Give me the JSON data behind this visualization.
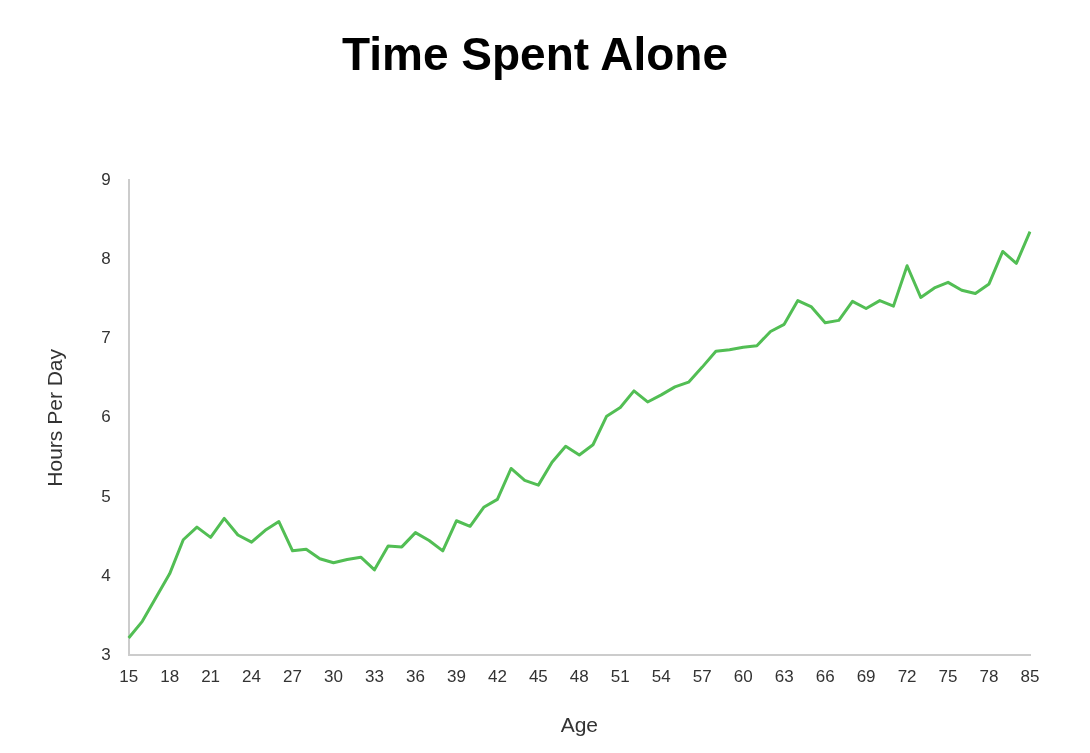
{
  "chart_data": {
    "type": "line",
    "title": "Time Spent Alone",
    "xlabel": "Age",
    "ylabel": "Hours Per Day",
    "categories": [
      "15",
      null,
      null,
      "18",
      null,
      null,
      "21",
      null,
      null,
      "24",
      null,
      null,
      "27",
      null,
      null,
      "30",
      null,
      null,
      "33",
      null,
      null,
      "36",
      null,
      null,
      "39",
      null,
      null,
      "42",
      null,
      null,
      "45",
      null,
      null,
      "48",
      null,
      null,
      "51",
      null,
      null,
      "54",
      null,
      null,
      "57",
      null,
      null,
      "60",
      null,
      null,
      "63",
      null,
      null,
      "66",
      null,
      null,
      "69",
      null,
      null,
      "72",
      null,
      null,
      "75",
      null,
      null,
      "78",
      null,
      null,
      "85"
    ],
    "series": [
      {
        "color": "#52be54",
        "values": [
          3.22,
          3.43,
          3.73,
          4.03,
          4.46,
          4.62,
          4.49,
          4.73,
          4.52,
          4.43,
          4.58,
          4.69,
          4.32,
          4.34,
          4.22,
          4.17,
          4.21,
          4.24,
          4.08,
          4.38,
          4.37,
          4.55,
          4.45,
          4.32,
          4.7,
          4.63,
          4.87,
          4.97,
          5.36,
          5.21,
          5.15,
          5.44,
          5.64,
          5.53,
          5.66,
          6.02,
          6.13,
          6.34,
          6.2,
          6.29,
          6.39,
          6.45,
          6.64,
          6.84,
          6.86,
          6.89,
          6.91,
          7.09,
          7.18,
          7.48,
          7.4,
          7.2,
          7.23,
          7.47,
          7.38,
          7.48,
          7.41,
          7.92,
          7.52,
          7.64,
          7.71,
          7.61,
          7.57,
          7.69,
          8.1,
          7.95,
          8.35
        ]
      }
    ],
    "ylim": [
      3,
      9
    ],
    "yticks": [
      3,
      4,
      5,
      6,
      7,
      8,
      9
    ],
    "grid": false,
    "legend": false,
    "marker": "none",
    "line_style": "solid"
  }
}
